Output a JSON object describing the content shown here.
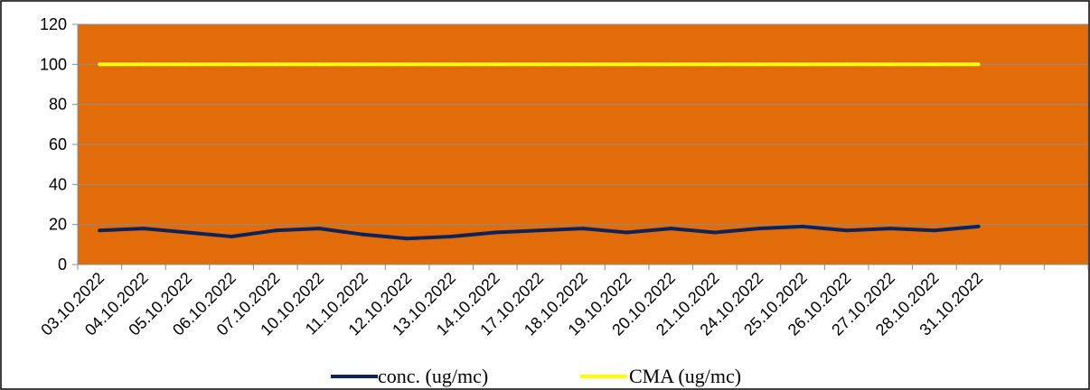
{
  "chart_data": {
    "type": "line",
    "title": "",
    "xlabel": "",
    "ylabel": "",
    "categories": [
      "03.10.2022",
      "04.10.2022",
      "05.10.2022",
      "06.10.2022",
      "07.10.2022",
      "10.10.2022",
      "11.10.2022",
      "12.10.2022",
      "13.10.2022",
      "14.10.2022",
      "17.10.2022",
      "18.10.2022",
      "19.10.2022",
      "20.10.2022",
      "21.10.2022",
      "24.10.2022",
      "25.10.2022",
      "26.10.2022",
      "27.10.2022",
      "28.10.2022",
      "31.10.2022"
    ],
    "ylim": [
      0,
      120
    ],
    "yticks": [
      0,
      20,
      40,
      60,
      80,
      100,
      120
    ],
    "grid": true,
    "legend_position": "bottom",
    "plot_background": "#E36C0A",
    "series": [
      {
        "name": "conc. (ug/mc)",
        "color": "#0E2357",
        "values": [
          17,
          18,
          16,
          14,
          17,
          18,
          15,
          13,
          14,
          16,
          17,
          18,
          16,
          18,
          16,
          18,
          19,
          17,
          18,
          17,
          19
        ]
      },
      {
        "name": "CMA (ug/mc)",
        "color": "#FFFF00",
        "values": [
          100,
          100,
          100,
          100,
          100,
          100,
          100,
          100,
          100,
          100,
          100,
          100,
          100,
          100,
          100,
          100,
          100,
          100,
          100,
          100,
          100
        ]
      }
    ]
  }
}
